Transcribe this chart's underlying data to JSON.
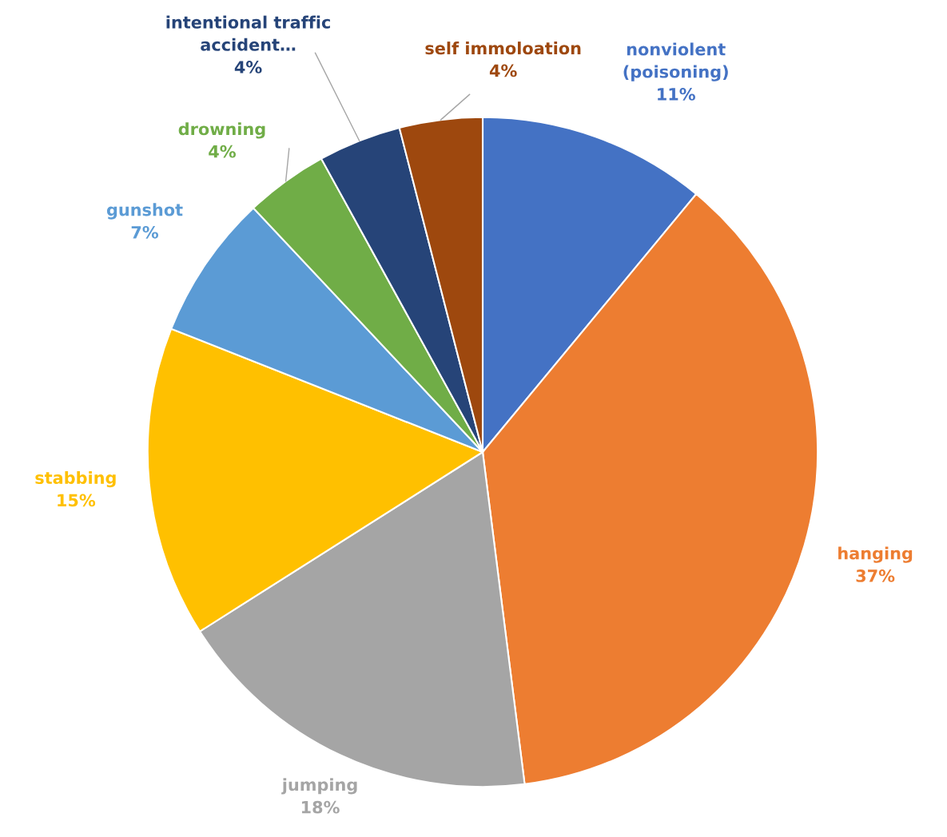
{
  "chart_data": {
    "type": "pie",
    "categories": [
      "nonviolent\n(poisoning)",
      "hanging",
      "jumping",
      "stabbing",
      "gunshot",
      "drowning",
      "intentional traffic\naccident…",
      "self immoloation"
    ],
    "values": [
      11,
      37,
      18,
      15,
      7,
      4,
      4,
      4
    ],
    "value_labels": [
      "11%",
      "37%",
      "18%",
      "15%",
      "7%",
      "4%",
      "4%",
      "4%"
    ],
    "colors": [
      "#4472c4",
      "#ed7d31",
      "#a5a5a5",
      "#ffc000",
      "#5b9bd5",
      "#70ad47",
      "#264478",
      "#9e480e"
    ],
    "legend": false
  }
}
